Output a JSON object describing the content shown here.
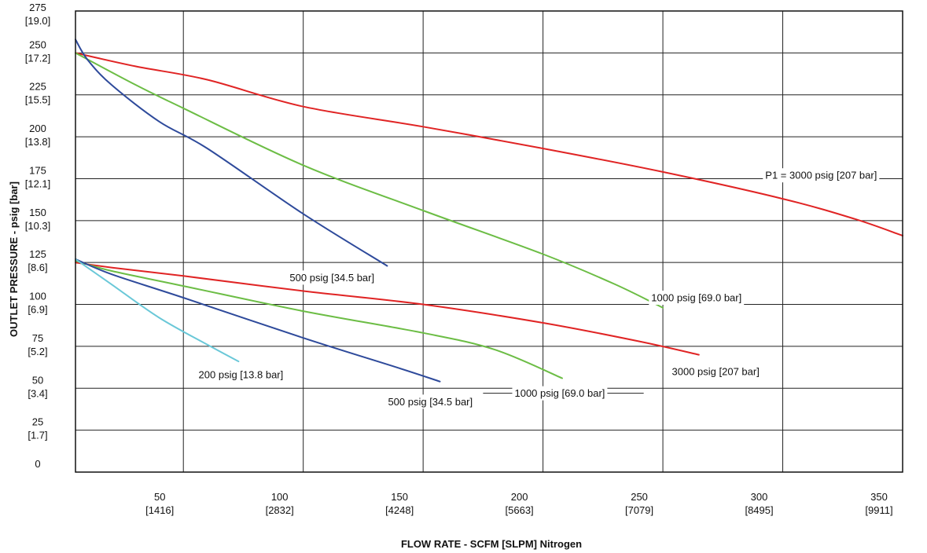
{
  "chart_data": {
    "type": "line",
    "xlabel": "FLOW RATE - SCFM [SLPM] Nitrogen",
    "ylabel": "OUTLET PRESSURE - psig [bar]",
    "xlim": [
      5,
      350
    ],
    "ylim": [
      0,
      275
    ],
    "grid": true,
    "x_ticks": [
      {
        "value": 50,
        "label": "50",
        "sub": "[1416]"
      },
      {
        "value": 100,
        "label": "100",
        "sub": "[2832]"
      },
      {
        "value": 150,
        "label": "150",
        "sub": "[4248]"
      },
      {
        "value": 200,
        "label": "200",
        "sub": "[5663]"
      },
      {
        "value": 250,
        "label": "250",
        "sub": "[7079]"
      },
      {
        "value": 300,
        "label": "300",
        "sub": "[8495]"
      },
      {
        "value": 350,
        "label": "350",
        "sub": "[9911]"
      }
    ],
    "y_ticks": [
      {
        "value": 0,
        "label": "0",
        "sub": ""
      },
      {
        "value": 25,
        "label": "25",
        "sub": "[1.7]"
      },
      {
        "value": 50,
        "label": "50",
        "sub": "[3.4]"
      },
      {
        "value": 75,
        "label": "75",
        "sub": "[5.2]"
      },
      {
        "value": 100,
        "label": "100",
        "sub": "[6.9]"
      },
      {
        "value": 125,
        "label": "125",
        "sub": "[8.6]"
      },
      {
        "value": 150,
        "label": "150",
        "sub": "[10.3]"
      },
      {
        "value": 175,
        "label": "175",
        "sub": "[12.1]"
      },
      {
        "value": 200,
        "label": "200",
        "sub": "[13.8]"
      },
      {
        "value": 225,
        "label": "225",
        "sub": "[15.5]"
      },
      {
        "value": 250,
        "label": "250",
        "sub": "[17.2]"
      },
      {
        "value": 275,
        "label": "275",
        "sub": "[19.0]"
      }
    ],
    "series": [
      {
        "color": "#e02424",
        "x": [
          5,
          30,
          60,
          100,
          150,
          200,
          250,
          300,
          330,
          350
        ],
        "y": [
          250,
          242,
          234,
          218,
          206,
          193,
          179,
          163,
          151,
          141
        ]
      },
      {
        "color": "#6cbd45",
        "x": [
          5,
          30,
          50,
          100,
          150,
          200,
          230,
          250
        ],
        "y": [
          250,
          231,
          217,
          183,
          156,
          130,
          112,
          98
        ]
      },
      {
        "color": "#2e4a9b",
        "x": [
          5,
          10,
          20,
          40,
          60,
          100,
          135
        ],
        "y": [
          258,
          246,
          231,
          209,
          193,
          154,
          123
        ]
      },
      {
        "color": "#e02424",
        "x": [
          5,
          20,
          50,
          100,
          150,
          200,
          240,
          265
        ],
        "y": [
          125,
          122,
          117,
          108,
          100,
          89,
          78,
          70
        ]
      },
      {
        "color": "#6cbd45",
        "x": [
          5,
          20,
          50,
          100,
          150,
          180,
          208
        ],
        "y": [
          126,
          120,
          111,
          96,
          83,
          73,
          56
        ]
      },
      {
        "color": "#2e4a9b",
        "x": [
          5,
          20,
          50,
          100,
          140,
          157
        ],
        "y": [
          127,
          118,
          104,
          80,
          62,
          54
        ]
      },
      {
        "color": "#6ac8d8",
        "x": [
          5,
          20,
          40,
          60,
          73
        ],
        "y": [
          127,
          112,
          92,
          76,
          66
        ]
      }
    ],
    "annotations": [
      {
        "text": "P1 = 3000 psig [207 bar]",
        "x": 316,
        "y": 177,
        "leader": [
          [
            300,
            177
          ],
          [
            332,
            177
          ]
        ]
      },
      {
        "text": "1000 psig [69.0 bar]",
        "x": 264,
        "y": 104
      },
      {
        "text": "500 psig [34.5 bar]",
        "x": 112,
        "y": 116
      },
      {
        "text": "3000 psig [207 bar]",
        "x": 272,
        "y": 60
      },
      {
        "text": "200 psig [13.8 bar]",
        "x": 74,
        "y": 58
      },
      {
        "text": "500 psig [34.5 bar]",
        "x": 153,
        "y": 42
      },
      {
        "text": "1000 psig [69.0 bar]",
        "x": 207,
        "y": 47,
        "leader": [
          [
            175,
            47
          ],
          [
            242,
            47
          ]
        ]
      }
    ]
  }
}
